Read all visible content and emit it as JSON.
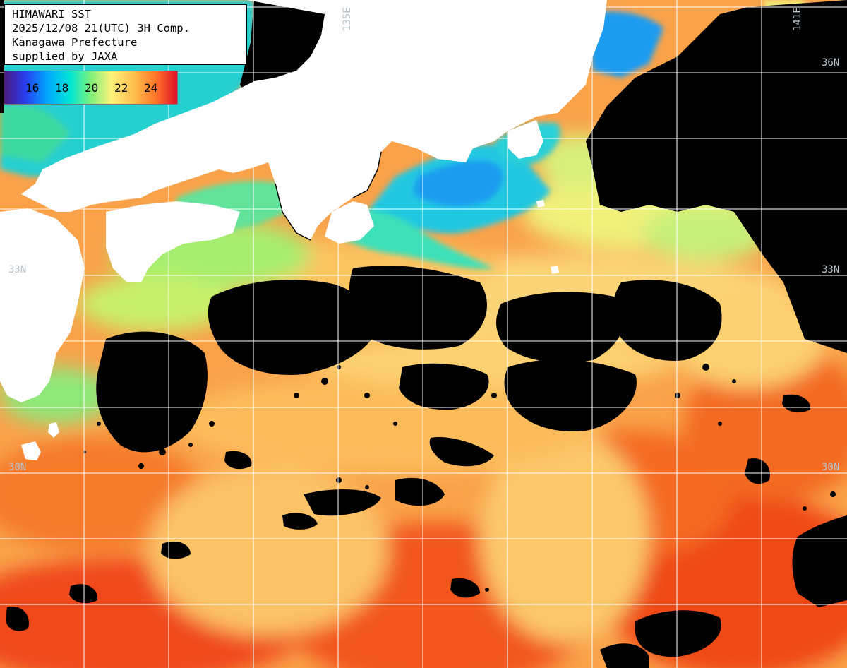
{
  "header": {
    "lines": [
      "HIMAWARI SST",
      "2025/12/08 21(UTC) 3H Comp.",
      "Kanagawa Prefecture",
      "supplied by JAXA"
    ]
  },
  "legend": {
    "ticks": [
      "16",
      "18",
      "20",
      "22",
      "24"
    ],
    "colors": [
      "#4a1a7a",
      "#2a3cf0",
      "#00a8ff",
      "#00e6d8",
      "#7ff07a",
      "#fff27a",
      "#ffbe50",
      "#ff7a2a",
      "#e0102a"
    ]
  },
  "grid_labels": {
    "lat": {
      "n36_right": "36N",
      "n33_left": "33N",
      "n33_right": "33N",
      "n30_left": "30N",
      "n30_right": "30N"
    },
    "lon": {
      "e135": "135E",
      "e141": "141E"
    }
  },
  "colors": {
    "land": "#ffffff",
    "no_data": "#000000",
    "grid": "#ffffff"
  }
}
